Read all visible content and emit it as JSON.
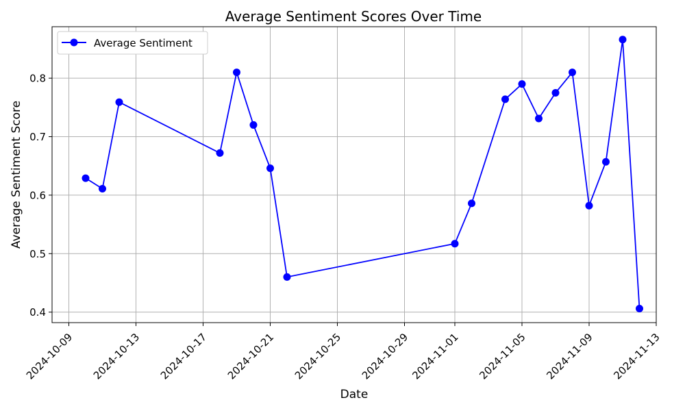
{
  "chart_data": {
    "type": "line",
    "title": "Average Sentiment Scores Over Time",
    "xlabel": "Date",
    "ylabel": "Average Sentiment Score",
    "x_ticks": [
      "2024-10-09",
      "2024-10-13",
      "2024-10-17",
      "2024-10-21",
      "2024-10-25",
      "2024-10-29",
      "2024-11-01",
      "2024-11-05",
      "2024-11-09",
      "2024-11-13"
    ],
    "y_ticks": [
      "0.4",
      "0.5",
      "0.6",
      "0.7",
      "0.8"
    ],
    "xlim": [
      "2024-10-08",
      "2024-11-13"
    ],
    "ylim": [
      0.382,
      0.888
    ],
    "grid": true,
    "legend_position": "top-left",
    "series": [
      {
        "name": "Average Sentiment",
        "color": "#0000ff",
        "marker": "circle",
        "x": [
          "2024-10-10",
          "2024-10-11",
          "2024-10-12",
          "2024-10-18",
          "2024-10-19",
          "2024-10-20",
          "2024-10-21",
          "2024-10-22",
          "2024-11-01",
          "2024-11-02",
          "2024-11-04",
          "2024-11-05",
          "2024-11-06",
          "2024-11-07",
          "2024-11-08",
          "2024-11-09",
          "2024-11-10",
          "2024-11-11",
          "2024-11-12"
        ],
        "values": [
          0.629,
          0.611,
          0.759,
          0.672,
          0.81,
          0.72,
          0.646,
          0.46,
          0.517,
          0.586,
          0.764,
          0.79,
          0.731,
          0.775,
          0.81,
          0.582,
          0.657,
          0.866,
          0.406
        ]
      }
    ]
  }
}
